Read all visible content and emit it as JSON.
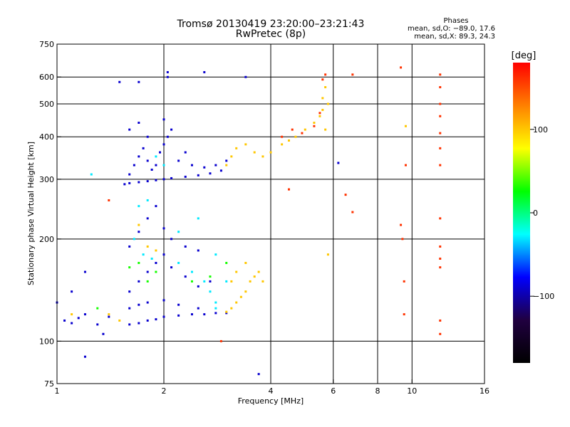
{
  "chart_data": {
    "type": "scatter",
    "title": "Tromsø 20130419 23:20:00–23:21:43",
    "subtitle": "RwPretec (8p)",
    "xlabel": "Frequency [MHz]",
    "ylabel": "Stationary phase Virtual Height [km]",
    "x_scale": "log",
    "y_scale": "log",
    "xlim": [
      1,
      16
    ],
    "ylim": [
      75,
      750
    ],
    "x_ticks": [
      1,
      2,
      4,
      6,
      8,
      10,
      16
    ],
    "x_tick_labels": [
      "1",
      "2",
      "4",
      "6",
      "8",
      "10",
      "16"
    ],
    "x_gridlines": [
      2,
      4,
      6,
      8,
      10
    ],
    "y_ticks": [
      75,
      100,
      200,
      300,
      400,
      500,
      600,
      750
    ],
    "y_tick_labels": [
      "75",
      "100",
      "200",
      "300",
      "400",
      "500",
      "600",
      "750"
    ],
    "y_gridlines": [
      100,
      200,
      300,
      400,
      500,
      600
    ],
    "grid": true,
    "phase_box": {
      "title": "Phases",
      "line_o": "mean, sd,O: −89.0, 17.6",
      "line_x": "mean, sd,X: 89.3, 24.3"
    },
    "colorbar": {
      "label": "[deg]",
      "range": [
        -180,
        180
      ],
      "ticks": [
        100,
        0,
        -100
      ],
      "tick_labels": [
        "100",
        "0",
        "−100"
      ],
      "colors": [
        "#ff0000",
        "#ff8000",
        "#ffff00",
        "#00ff00",
        "#00ffff",
        "#0000ff",
        "#200040",
        "#000000"
      ]
    },
    "series": [
      {
        "phase": -90,
        "points": [
          [
            1.6,
            112
          ],
          [
            1.7,
            113
          ],
          [
            1.8,
            115
          ],
          [
            1.9,
            116
          ],
          [
            2.0,
            118
          ],
          [
            2.2,
            119
          ],
          [
            2.4,
            120
          ],
          [
            2.6,
            120
          ],
          [
            2.8,
            121
          ],
          [
            3.0,
            121
          ],
          [
            1.6,
            125
          ],
          [
            1.7,
            128
          ],
          [
            1.8,
            130
          ],
          [
            2.0,
            132
          ],
          [
            2.2,
            128
          ],
          [
            2.5,
            125
          ],
          [
            1.6,
            140
          ],
          [
            1.7,
            150
          ],
          [
            1.8,
            160
          ],
          [
            1.9,
            170
          ],
          [
            2.0,
            180
          ],
          [
            2.1,
            165
          ],
          [
            2.3,
            155
          ],
          [
            2.5,
            145
          ],
          [
            2.7,
            150
          ],
          [
            1.6,
            190
          ],
          [
            1.7,
            210
          ],
          [
            1.8,
            230
          ],
          [
            1.9,
            250
          ],
          [
            2.0,
            215
          ],
          [
            2.1,
            200
          ],
          [
            2.3,
            190
          ],
          [
            2.5,
            185
          ],
          [
            1.55,
            290
          ],
          [
            1.6,
            292
          ],
          [
            1.7,
            294
          ],
          [
            1.8,
            296
          ],
          [
            1.9,
            298
          ],
          [
            2.0,
            300
          ],
          [
            2.1,
            302
          ],
          [
            2.3,
            305
          ],
          [
            2.5,
            308
          ],
          [
            2.7,
            312
          ],
          [
            2.9,
            318
          ],
          [
            1.6,
            310
          ],
          [
            1.65,
            330
          ],
          [
            1.7,
            350
          ],
          [
            1.75,
            370
          ],
          [
            1.8,
            340
          ],
          [
            1.85,
            320
          ],
          [
            1.9,
            330
          ],
          [
            1.95,
            360
          ],
          [
            2.0,
            380
          ],
          [
            2.05,
            400
          ],
          [
            2.1,
            420
          ],
          [
            1.6,
            420
          ],
          [
            1.7,
            440
          ],
          [
            1.8,
            400
          ],
          [
            2.0,
            450
          ],
          [
            2.05,
            620
          ],
          [
            2.05,
            600
          ],
          [
            2.6,
            620
          ],
          [
            1.5,
            580
          ],
          [
            1.7,
            580
          ],
          [
            2.2,
            340
          ],
          [
            2.4,
            330
          ],
          [
            2.6,
            325
          ],
          [
            2.8,
            330
          ],
          [
            3.0,
            340
          ],
          [
            2.3,
            360
          ],
          [
            1.05,
            115
          ],
          [
            1.1,
            113
          ],
          [
            1.15,
            117
          ],
          [
            1.2,
            120
          ],
          [
            1.3,
            112
          ],
          [
            1.4,
            118
          ],
          [
            1.2,
            90
          ],
          [
            1.35,
            105
          ],
          [
            1.2,
            160
          ],
          [
            1.0,
            130
          ],
          [
            1.1,
            140
          ],
          [
            3.7,
            80
          ],
          [
            3.4,
            600
          ],
          [
            6.2,
            335
          ]
        ]
      },
      {
        "phase": -30,
        "points": [
          [
            1.65,
            200
          ],
          [
            1.75,
            180
          ],
          [
            1.85,
            175
          ],
          [
            2.2,
            170
          ],
          [
            2.4,
            160
          ],
          [
            2.6,
            150
          ],
          [
            2.7,
            140
          ],
          [
            2.8,
            130
          ],
          [
            2.2,
            210
          ],
          [
            2.5,
            230
          ],
          [
            2.8,
            180
          ],
          [
            1.9,
            350
          ],
          [
            2.0,
            330
          ],
          [
            1.8,
            260
          ],
          [
            1.7,
            250
          ],
          [
            2.8,
            125
          ],
          [
            1.25,
            310
          ],
          [
            3.0,
            150
          ]
        ]
      },
      {
        "phase": 30,
        "points": [
          [
            1.6,
            165
          ],
          [
            1.7,
            170
          ],
          [
            1.8,
            150
          ],
          [
            1.9,
            160
          ],
          [
            2.4,
            150
          ],
          [
            2.7,
            155
          ],
          [
            1.3,
            125
          ],
          [
            3.0,
            170
          ]
        ]
      },
      {
        "phase": 100,
        "points": [
          [
            3.0,
            122
          ],
          [
            3.1,
            125
          ],
          [
            3.2,
            130
          ],
          [
            3.3,
            135
          ],
          [
            3.4,
            140
          ],
          [
            3.5,
            150
          ],
          [
            3.6,
            155
          ],
          [
            3.7,
            160
          ],
          [
            3.8,
            150
          ],
          [
            3.1,
            150
          ],
          [
            3.2,
            160
          ],
          [
            3.4,
            170
          ],
          [
            3.0,
            330
          ],
          [
            3.1,
            350
          ],
          [
            3.2,
            370
          ],
          [
            3.4,
            380
          ],
          [
            3.6,
            360
          ],
          [
            3.8,
            350
          ],
          [
            4.0,
            360
          ],
          [
            4.3,
            380
          ],
          [
            4.5,
            390
          ],
          [
            4.7,
            400
          ],
          [
            5.0,
            420
          ],
          [
            5.3,
            440
          ],
          [
            5.5,
            460
          ],
          [
            5.6,
            480
          ],
          [
            5.6,
            520
          ],
          [
            5.7,
            560
          ],
          [
            5.8,
            500
          ],
          [
            5.7,
            420
          ],
          [
            1.7,
            220
          ],
          [
            1.8,
            190
          ],
          [
            1.9,
            185
          ],
          [
            1.1,
            120
          ],
          [
            1.4,
            120
          ],
          [
            1.5,
            115
          ],
          [
            9.6,
            430
          ],
          [
            5.8,
            180
          ]
        ]
      },
      {
        "phase": 160,
        "points": [
          [
            4.3,
            400
          ],
          [
            4.6,
            420
          ],
          [
            4.9,
            410
          ],
          [
            5.3,
            430
          ],
          [
            5.5,
            470
          ],
          [
            5.6,
            590
          ],
          [
            5.7,
            610
          ],
          [
            6.8,
            610
          ],
          [
            9.3,
            640
          ],
          [
            12.0,
            610
          ],
          [
            12.0,
            560
          ],
          [
            12.0,
            500
          ],
          [
            12.0,
            460
          ],
          [
            12.0,
            410
          ],
          [
            12.0,
            370
          ],
          [
            12.0,
            330
          ],
          [
            12.0,
            230
          ],
          [
            12.0,
            190
          ],
          [
            12.0,
            175
          ],
          [
            12.0,
            165
          ],
          [
            12.0,
            115
          ],
          [
            12.0,
            105
          ],
          [
            9.6,
            330
          ],
          [
            9.3,
            220
          ],
          [
            9.4,
            200
          ],
          [
            9.5,
            150
          ],
          [
            9.5,
            120
          ],
          [
            6.5,
            270
          ],
          [
            6.8,
            240
          ],
          [
            4.5,
            280
          ],
          [
            1.4,
            260
          ],
          [
            2.9,
            100
          ]
        ]
      }
    ]
  }
}
